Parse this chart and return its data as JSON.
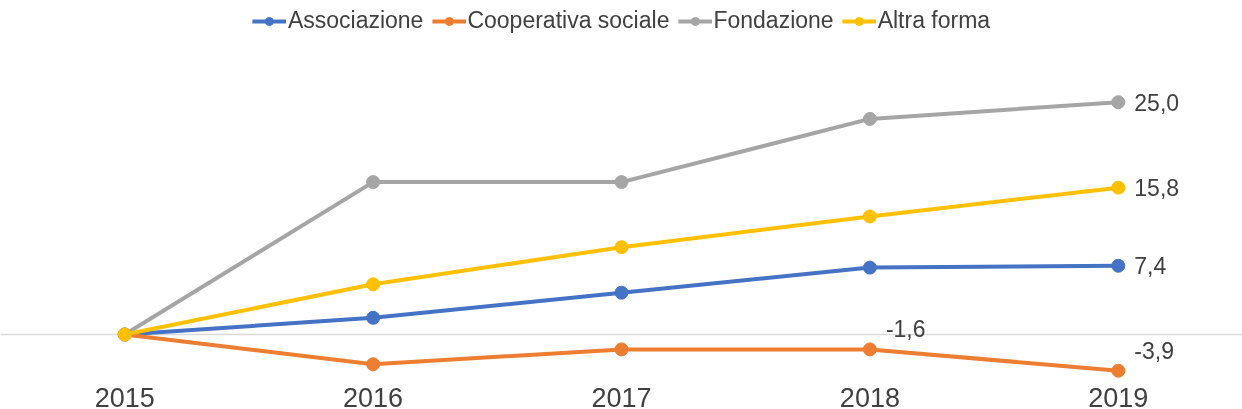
{
  "chart_data": {
    "type": "line",
    "categories": [
      "2015",
      "2016",
      "2017",
      "2018",
      "2019"
    ],
    "series": [
      {
        "name": "Associazione",
        "color": "#4472c4",
        "values": [
          0,
          1.8,
          4.5,
          7.2,
          7.4
        ],
        "value_labels": [
          null,
          null,
          null,
          null,
          "7,4"
        ]
      },
      {
        "name": "Cooperativa sociale",
        "color": "#ed7d31",
        "values": [
          0,
          -3.2,
          -1.6,
          -1.6,
          -3.9
        ],
        "value_labels": [
          null,
          null,
          null,
          "-1,6",
          "-3,9"
        ]
      },
      {
        "name": "Fondazione",
        "color": "#a5a5a5",
        "values": [
          0,
          16.4,
          16.4,
          23.2,
          25.0
        ],
        "value_labels": [
          null,
          null,
          null,
          null,
          "25,0"
        ]
      },
      {
        "name": "Altra forma",
        "color": "#ffc000",
        "values": [
          0,
          5.4,
          9.4,
          12.7,
          15.8
        ],
        "value_labels": [
          null,
          null,
          null,
          null,
          "15,8"
        ]
      }
    ],
    "legend": "top",
    "marker": "circle",
    "line_style": "solid"
  }
}
